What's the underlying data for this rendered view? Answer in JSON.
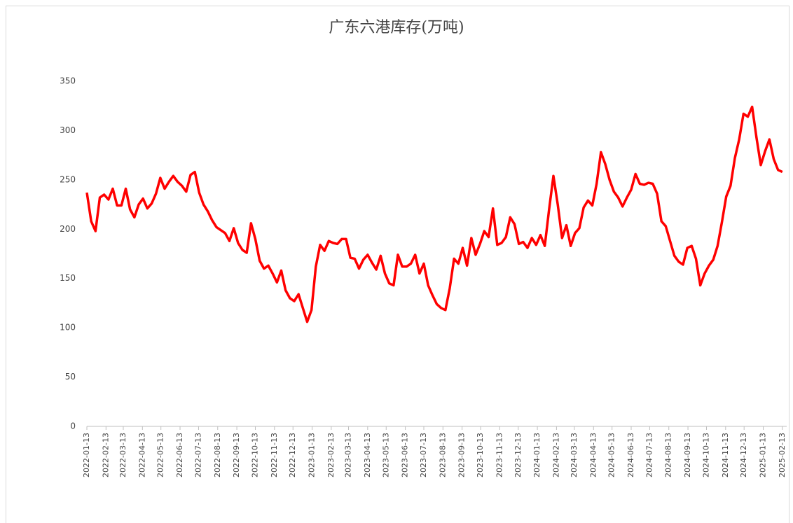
{
  "chart_data": {
    "type": "line",
    "title": "广东六港库存(万吨)",
    "x": [
      "2022-01-13",
      "2022-01-20",
      "2022-01-27",
      "2022-02-03",
      "2022-02-10",
      "2022-02-17",
      "2022-02-24",
      "2022-03-03",
      "2022-03-10",
      "2022-03-17",
      "2022-03-24",
      "2022-03-31",
      "2022-04-07",
      "2022-04-14",
      "2022-04-21",
      "2022-04-28",
      "2022-05-05",
      "2022-05-12",
      "2022-05-19",
      "2022-05-26",
      "2022-06-02",
      "2022-06-09",
      "2022-06-16",
      "2022-06-23",
      "2022-06-30",
      "2022-07-07",
      "2022-07-14",
      "2022-07-21",
      "2022-07-28",
      "2022-08-04",
      "2022-08-11",
      "2022-08-18",
      "2022-08-25",
      "2022-09-01",
      "2022-09-08",
      "2022-09-15",
      "2022-09-22",
      "2022-09-29",
      "2022-10-06",
      "2022-10-13",
      "2022-10-20",
      "2022-10-27",
      "2022-11-03",
      "2022-11-10",
      "2022-11-17",
      "2022-11-24",
      "2022-12-01",
      "2022-12-08",
      "2022-12-15",
      "2022-12-22",
      "2022-12-29",
      "2023-01-05",
      "2023-01-12",
      "2023-01-19",
      "2023-01-26",
      "2023-02-02",
      "2023-02-09",
      "2023-02-16",
      "2023-02-23",
      "2023-03-02",
      "2023-03-09",
      "2023-03-16",
      "2023-03-23",
      "2023-03-30",
      "2023-04-06",
      "2023-04-13",
      "2023-04-20",
      "2023-04-27",
      "2023-05-04",
      "2023-05-11",
      "2023-05-18",
      "2023-05-25",
      "2023-06-01",
      "2023-06-08",
      "2023-06-15",
      "2023-06-22",
      "2023-06-29",
      "2023-07-06",
      "2023-07-13",
      "2023-07-20",
      "2023-07-27",
      "2023-08-03",
      "2023-08-10",
      "2023-08-17",
      "2023-08-24",
      "2023-08-31",
      "2023-09-07",
      "2023-09-14",
      "2023-09-21",
      "2023-09-28",
      "2023-10-05",
      "2023-10-12",
      "2023-10-19",
      "2023-10-26",
      "2023-11-02",
      "2023-11-09",
      "2023-11-16",
      "2023-11-23",
      "2023-11-30",
      "2023-12-07",
      "2023-12-14",
      "2023-12-21",
      "2023-12-28",
      "2024-01-04",
      "2024-01-11",
      "2024-01-18",
      "2024-01-25",
      "2024-02-01",
      "2024-02-08",
      "2024-02-15",
      "2024-02-22",
      "2024-02-29",
      "2024-03-07",
      "2024-03-14",
      "2024-03-21",
      "2024-03-28",
      "2024-04-04",
      "2024-04-11",
      "2024-04-18",
      "2024-04-25",
      "2024-05-02",
      "2024-05-09",
      "2024-05-16",
      "2024-05-23",
      "2024-05-30",
      "2024-06-06",
      "2024-06-13",
      "2024-06-20",
      "2024-06-27",
      "2024-07-04",
      "2024-07-11",
      "2024-07-18",
      "2024-07-25",
      "2024-08-01",
      "2024-08-08",
      "2024-08-15",
      "2024-08-22",
      "2024-08-29",
      "2024-09-05",
      "2024-09-12",
      "2024-09-19",
      "2024-09-26",
      "2024-10-03",
      "2024-10-10",
      "2024-10-17",
      "2024-10-24",
      "2024-10-31",
      "2024-11-07",
      "2024-11-14",
      "2024-11-21",
      "2024-11-28",
      "2024-12-05",
      "2024-12-12",
      "2024-12-19",
      "2024-12-26",
      "2025-01-02",
      "2025-01-09",
      "2025-01-16",
      "2025-01-23",
      "2025-01-30",
      "2025-02-06",
      "2025-02-13"
    ],
    "values": [
      237,
      208,
      198,
      232,
      235,
      230,
      241,
      224,
      224,
      241,
      220,
      212,
      225,
      231,
      221,
      226,
      236,
      252,
      241,
      248,
      254,
      248,
      244,
      238,
      255,
      258,
      237,
      225,
      218,
      209,
      202,
      199,
      196,
      188,
      201,
      186,
      179,
      176,
      206,
      190,
      168,
      160,
      163,
      155,
      146,
      158,
      138,
      130,
      127,
      134,
      120,
      106,
      118,
      162,
      184,
      178,
      188,
      186,
      185,
      190,
      190,
      171,
      170,
      160,
      169,
      174,
      166,
      159,
      173,
      155,
      145,
      143,
      174,
      162,
      162,
      165,
      174,
      155,
      165,
      143,
      133,
      124,
      120,
      118,
      140,
      170,
      165,
      181,
      163,
      191,
      174,
      185,
      198,
      192,
      221,
      184,
      186,
      192,
      212,
      205,
      185,
      187,
      181,
      191,
      184,
      194,
      183,
      220,
      254,
      225,
      191,
      204,
      183,
      196,
      201,
      222,
      229,
      224,
      246,
      278,
      266,
      250,
      238,
      232,
      223,
      232,
      240,
      256,
      246,
      245,
      247,
      246,
      236,
      208,
      203,
      188,
      173,
      167,
      164,
      181,
      183,
      170,
      143,
      155,
      163,
      169,
      183,
      207,
      233,
      244,
      272,
      291,
      317,
      314,
      324,
      293,
      265,
      279,
      291,
      271,
      260,
      258
    ],
    "color": "#ff0000",
    "xlim": [
      "2022-01-13",
      "2025-02-20"
    ],
    "xticks": [
      "2022-01-13",
      "2022-02-13",
      "2022-03-13",
      "2022-04-13",
      "2022-05-13",
      "2022-06-13",
      "2022-07-13",
      "2022-08-13",
      "2022-09-13",
      "2022-10-13",
      "2022-11-13",
      "2022-12-13",
      "2023-01-13",
      "2023-02-13",
      "2023-03-13",
      "2023-04-13",
      "2023-05-13",
      "2023-06-13",
      "2023-07-13",
      "2023-08-13",
      "2023-09-13",
      "2023-10-13",
      "2023-11-13",
      "2023-12-13",
      "2024-01-13",
      "2024-02-13",
      "2024-03-13",
      "2024-04-13",
      "2024-05-13",
      "2024-06-13",
      "2024-07-13",
      "2024-08-13",
      "2024-09-13",
      "2024-10-13",
      "2024-11-13",
      "2024-12-13",
      "2025-01-13",
      "2025-02-13"
    ],
    "ylim": [
      0,
      350
    ],
    "yticks": [
      0,
      50,
      100,
      150,
      200,
      250,
      300,
      350
    ],
    "grid": false
  }
}
